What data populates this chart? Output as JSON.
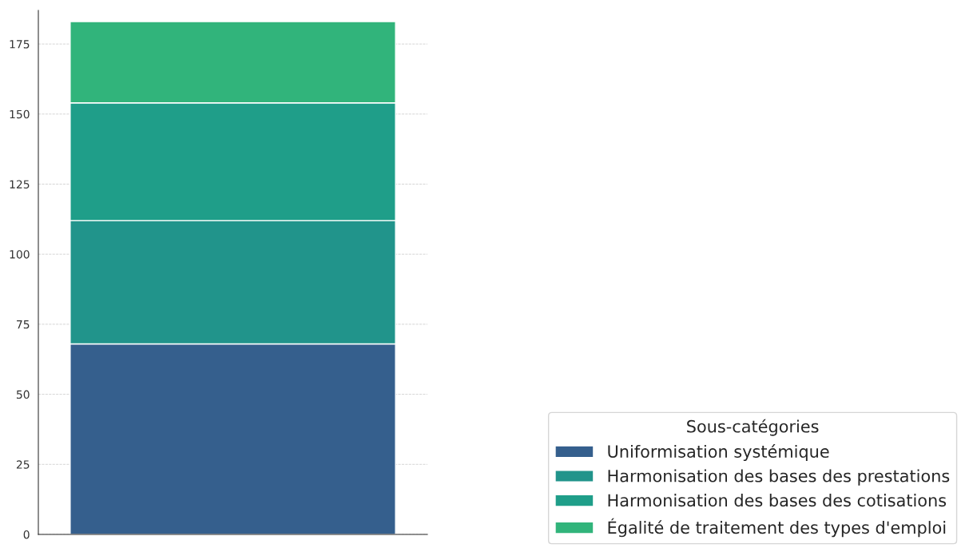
{
  "chart_data": {
    "type": "bar",
    "stacked": true,
    "categories": [
      null
    ],
    "legend_title": "Sous-catégories",
    "series": [
      {
        "name": "Uniformisation systémique",
        "color": "#355f8d",
        "values": [
          68
        ]
      },
      {
        "name": "Harmonisation des bases des prestations",
        "color": "#21948b",
        "values": [
          44
        ]
      },
      {
        "name": "Harmonisation des bases des cotisations",
        "color": "#1f9e89",
        "values": [
          42
        ]
      },
      {
        "name": "Égalité de traitement des types d'emploi",
        "color": "#31b47b",
        "values": [
          29
        ]
      }
    ],
    "ylim": [
      0,
      187
    ],
    "yticks": [
      0,
      25,
      50,
      75,
      100,
      125,
      150,
      175
    ],
    "grid": "y",
    "legend": "bottom right"
  }
}
